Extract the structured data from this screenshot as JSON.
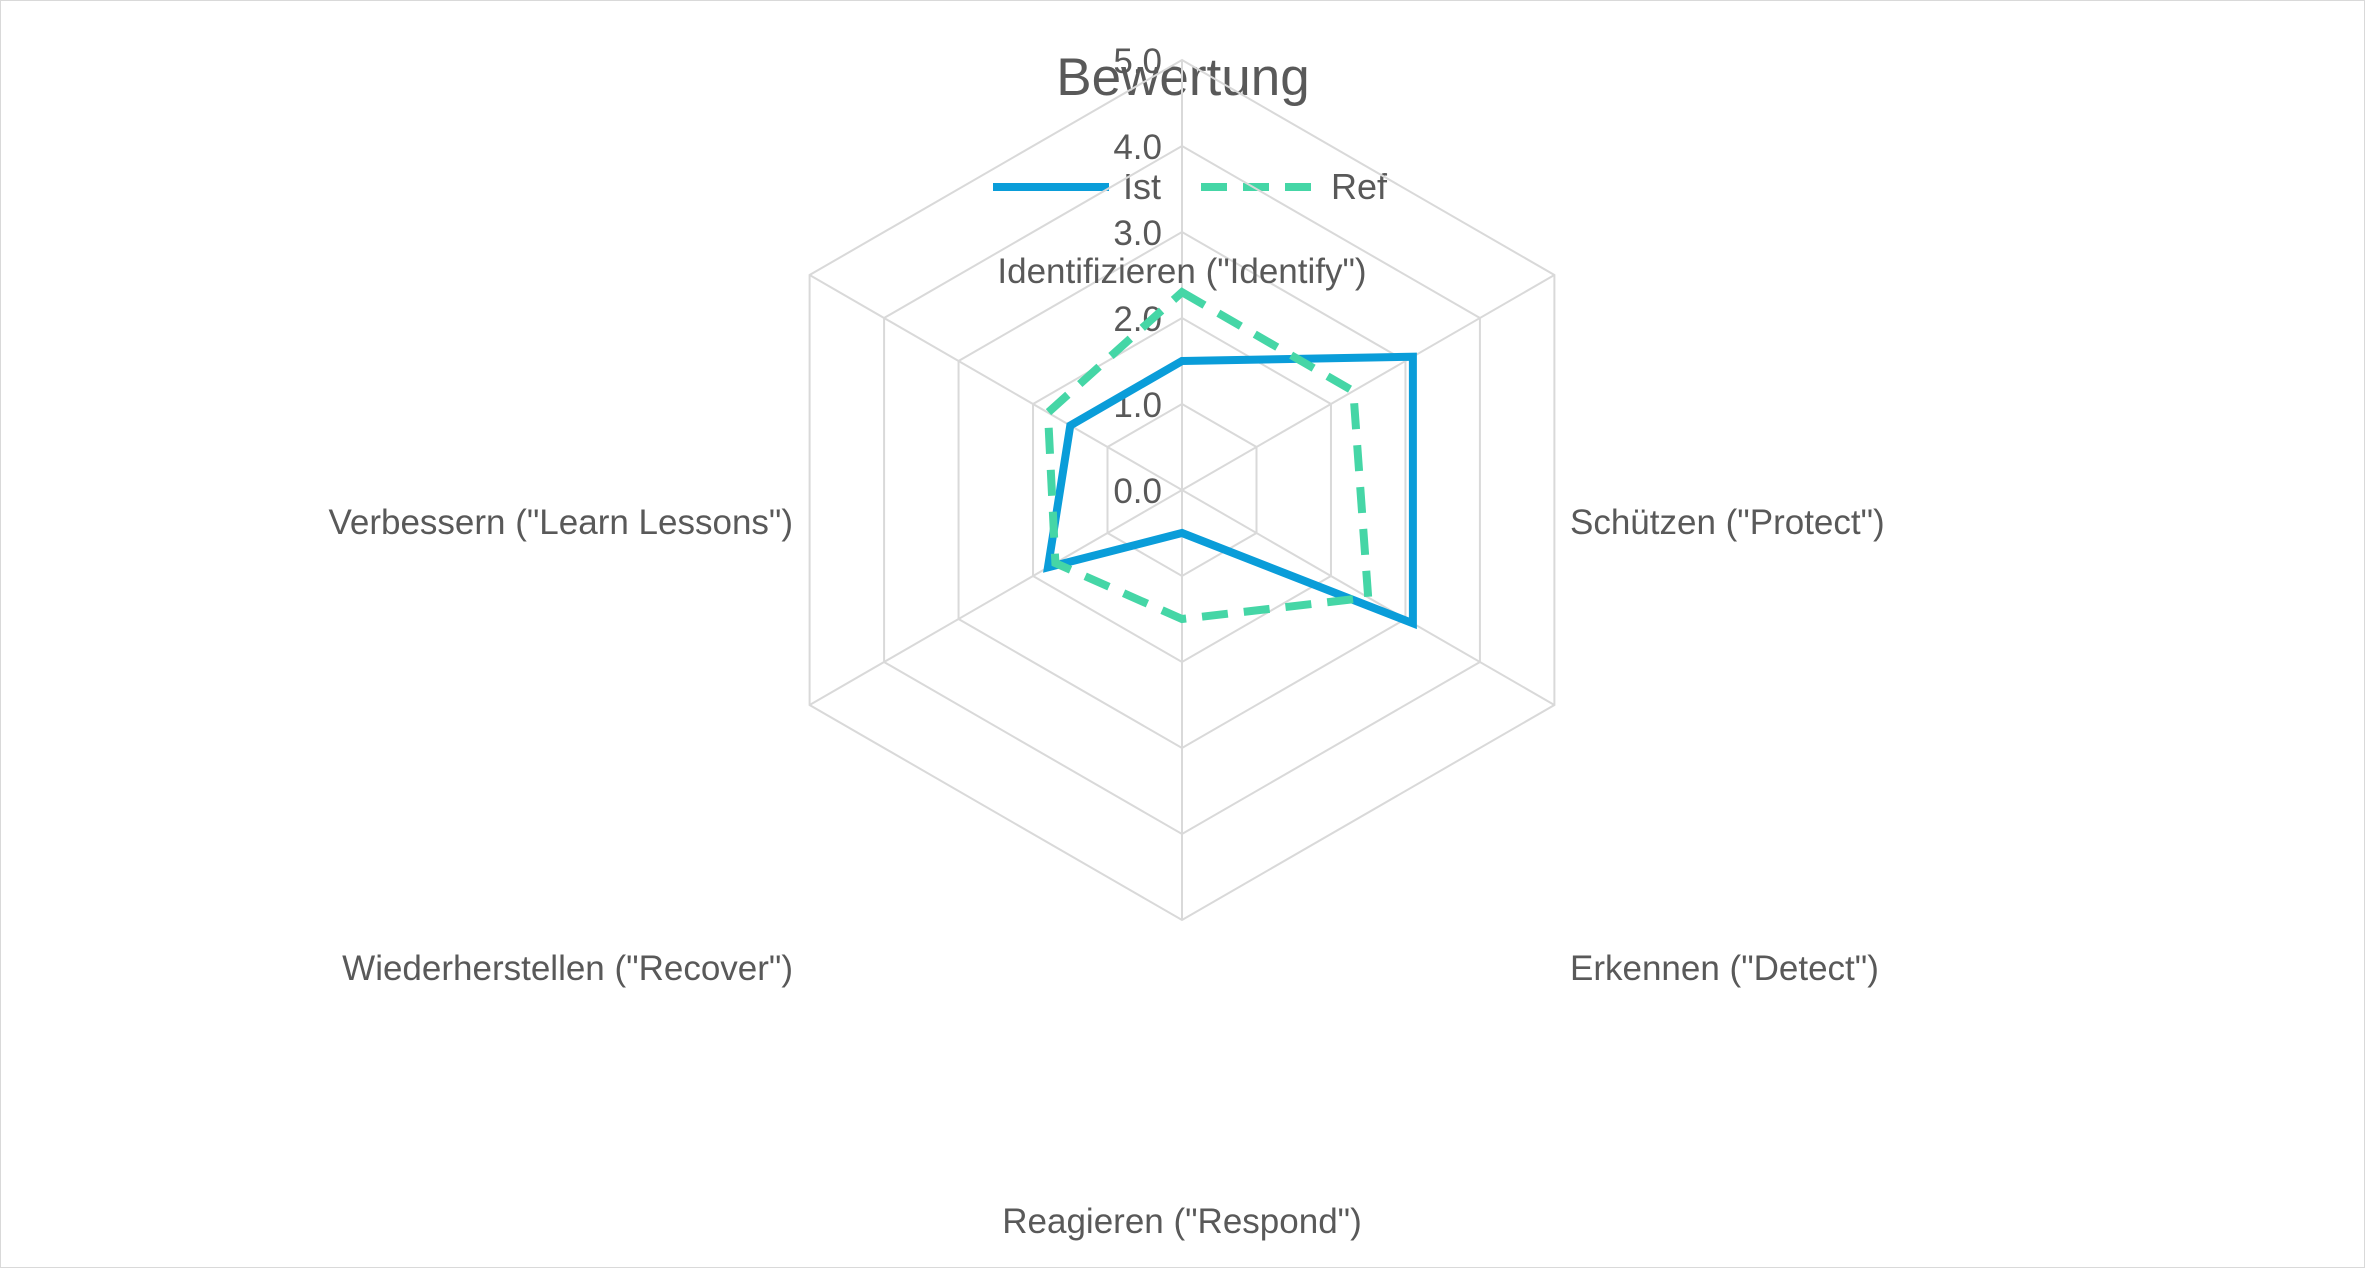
{
  "chart_data": {
    "type": "radar",
    "title": "Bewertung",
    "categories": [
      "Identifizieren (\"Identify\")",
      "Schützen (\"Protect\")",
      "Erkennen (\"Detect\")",
      "Reagieren (\"Respond\")",
      "Wiederherstellen (\"Recover\")",
      "Verbessern (\"Learn Lessons\")"
    ],
    "series": [
      {
        "name": "Ist",
        "values": [
          1.5,
          3.1,
          3.1,
          0.5,
          1.8,
          1.5
        ],
        "color": "#0a9dd9",
        "line_style": "solid"
      },
      {
        "name": "Ref",
        "values": [
          2.3,
          2.3,
          2.5,
          1.5,
          1.7,
          1.8
        ],
        "color": "#45d6a6",
        "line_style": "dashed"
      }
    ],
    "ticks": [
      "0.0",
      "1.0",
      "2.0",
      "3.0",
      "4.0",
      "5.0"
    ],
    "rlim": [
      0,
      5
    ],
    "grid": true,
    "grid_color": "#d9d9d9",
    "legend_position": "top"
  }
}
